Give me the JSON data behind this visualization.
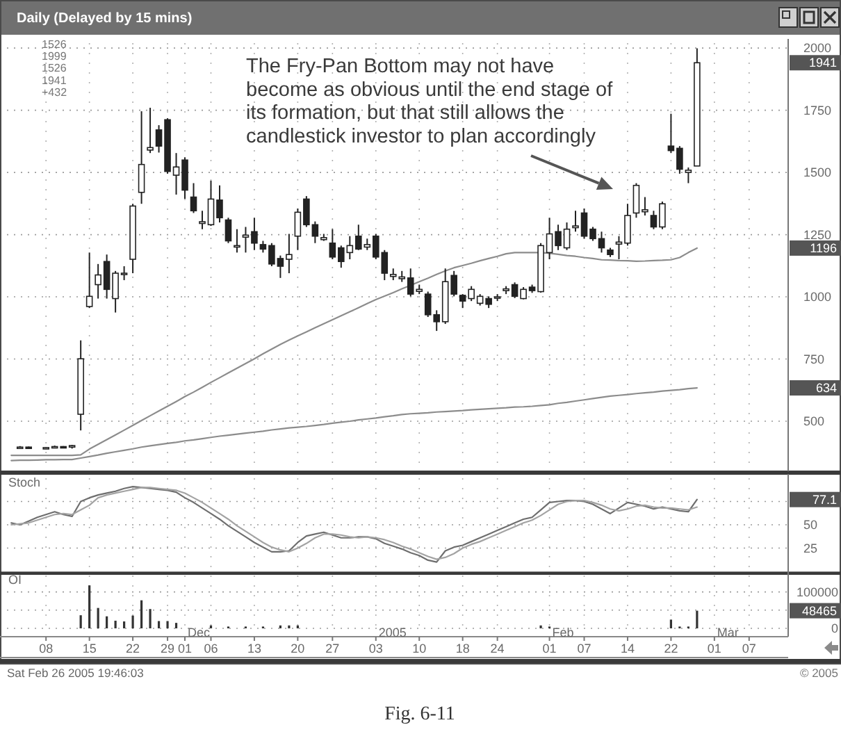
{
  "chart_data": [
    {
      "type": "candlestick",
      "title": "Daily (Delayed by 15 mins)",
      "categories": [
        null,
        null,
        null,
        null,
        "08",
        null,
        null,
        null,
        null,
        "15",
        null,
        null,
        null,
        null,
        "22",
        null,
        null,
        null,
        "29",
        null,
        "01",
        null,
        null,
        "06",
        null,
        null,
        null,
        null,
        "13",
        null,
        null,
        null,
        null,
        "20",
        null,
        null,
        null,
        "27",
        null,
        null,
        null,
        null,
        "03",
        null,
        null,
        null,
        null,
        "10",
        null,
        null,
        null,
        null,
        "18",
        null,
        null,
        null,
        "24",
        null,
        null,
        null,
        null,
        null,
        "01",
        null,
        null,
        null,
        "07",
        null,
        null,
        null,
        null,
        "14",
        null,
        null,
        null,
        null,
        "22",
        null,
        null,
        null,
        null,
        "01",
        null,
        null,
        null,
        "07",
        null,
        null,
        null,
        null
      ],
      "ohlc": [
        null,
        [
          392,
          400,
          390,
          396
        ],
        [
          396,
          398,
          390,
          392
        ],
        null,
        [
          392,
          396,
          388,
          394
        ],
        [
          394,
          402,
          392,
          398
        ],
        [
          398,
          400,
          392,
          396
        ],
        [
          396,
          405,
          390,
          402
        ],
        [
          528,
          825,
          463,
          751
        ],
        [
          961,
          1178,
          955,
          1002
        ],
        [
          1049,
          1132,
          993,
          1088
        ],
        [
          1142,
          1170,
          993,
          1030
        ],
        [
          993,
          1104,
          937,
          1095
        ],
        [
          1090,
          1123,
          1067,
          1095
        ],
        [
          1151,
          1374,
          1095,
          1365
        ],
        [
          1420,
          1746,
          1374,
          1532
        ],
        [
          1590,
          1760,
          1578,
          1600
        ],
        [
          1671,
          1690,
          1580,
          1606
        ],
        [
          1712,
          1718,
          1495,
          1504
        ],
        [
          1489,
          1578,
          1411,
          1522
        ],
        [
          1550,
          1561,
          1394,
          1429
        ],
        [
          1401,
          1457,
          1337,
          1346
        ],
        [
          1295,
          1346,
          1272,
          1302
        ],
        [
          1290,
          1467,
          1285,
          1393
        ],
        [
          1389,
          1448,
          1299,
          1318
        ],
        [
          1309,
          1318,
          1216,
          1225
        ],
        [
          1200,
          1272,
          1178,
          1206
        ],
        [
          1240,
          1281,
          1178,
          1248
        ],
        [
          1262,
          1318,
          1188,
          1216
        ],
        [
          1210,
          1225,
          1178,
          1192
        ],
        [
          1206,
          1216,
          1123,
          1132
        ],
        [
          1154,
          1166,
          1076,
          1123
        ],
        [
          1151,
          1253,
          1095,
          1170
        ],
        [
          1244,
          1355,
          1188,
          1340
        ],
        [
          1393,
          1405,
          1281,
          1290
        ],
        [
          1290,
          1303,
          1216,
          1244
        ],
        [
          1230,
          1253,
          1225,
          1238
        ],
        [
          1216,
          1272,
          1151,
          1160
        ],
        [
          1197,
          1206,
          1117,
          1142
        ],
        [
          1178,
          1244,
          1151,
          1206
        ],
        [
          1244,
          1290,
          1188,
          1192
        ],
        [
          1200,
          1234,
          1188,
          1210
        ],
        [
          1244,
          1253,
          1151,
          1160
        ],
        [
          1178,
          1188,
          1067,
          1095
        ],
        [
          1082,
          1114,
          1067,
          1090
        ],
        [
          1073,
          1104,
          1060,
          1080
        ],
        [
          1076,
          1114,
          1002,
          1011
        ],
        [
          1022,
          1049,
          1011,
          1030
        ],
        [
          1011,
          1021,
          919,
          928
        ],
        [
          928,
          946,
          863,
          900
        ],
        [
          900,
          1114,
          891,
          1061
        ],
        [
          1086,
          1104,
          1002,
          1011
        ],
        [
          1006,
          1011,
          955,
          983
        ],
        [
          993,
          1043,
          983,
          1030
        ],
        [
          974,
          1011,
          965,
          1002
        ],
        [
          993,
          1002,
          955,
          970
        ],
        [
          995,
          1011,
          983,
          1000
        ],
        [
          1025,
          1043,
          1011,
          1032
        ],
        [
          1049,
          1058,
          995,
          1002
        ],
        [
          993,
          1039,
          990,
          1030
        ],
        [
          1039,
          1049,
          1016,
          1025
        ],
        [
          1021,
          1216,
          1017,
          1206
        ],
        [
          1178,
          1318,
          1151,
          1253
        ],
        [
          1262,
          1290,
          1188,
          1206
        ],
        [
          1197,
          1299,
          1188,
          1272
        ],
        [
          1278,
          1346,
          1262,
          1285
        ],
        [
          1337,
          1355,
          1234,
          1244
        ],
        [
          1272,
          1281,
          1225,
          1234
        ],
        [
          1234,
          1262,
          1178,
          1197
        ],
        [
          1188,
          1197,
          1160,
          1170
        ],
        [
          1212,
          1244,
          1151,
          1220
        ],
        [
          1216,
          1374,
          1206,
          1327
        ],
        [
          1337,
          1457,
          1318,
          1448
        ],
        [
          1342,
          1401,
          1327,
          1350
        ],
        [
          1327,
          1346,
          1272,
          1281
        ],
        [
          1281,
          1383,
          1272,
          1374
        ],
        [
          1606,
          1736,
          1578,
          1588
        ],
        [
          1597,
          1606,
          1495,
          1513
        ],
        [
          1500,
          1520,
          1457,
          1509
        ],
        [
          1526,
          1999,
          1526,
          1941
        ],
        null,
        null,
        null,
        null,
        null,
        null,
        null,
        null,
        null,
        null
      ],
      "series": [
        {
          "type": "line",
          "color": "#8c8c8c",
          "values": [
            363,
            363,
            363,
            363,
            363,
            363,
            363,
            363,
            365,
            388,
            407,
            426,
            445,
            464,
            483,
            503,
            522,
            541,
            560,
            579,
            599,
            617,
            636,
            656,
            675,
            694,
            713,
            732,
            751,
            771,
            790,
            809,
            826,
            843,
            859,
            876,
            892,
            908,
            924,
            940,
            956,
            973,
            989,
            1003,
            1017,
            1032,
            1046,
            1061,
            1075,
            1090,
            1104,
            1117,
            1126,
            1135,
            1145,
            1154,
            1163,
            1173,
            1178,
            1178,
            1178,
            1178,
            1175,
            1171,
            1166,
            1163,
            1158,
            1154,
            1149,
            1148,
            1146,
            1145,
            1143,
            1144,
            1146,
            1147,
            1149,
            1158,
            1178,
            1196,
            null,
            null,
            null,
            null,
            null,
            null,
            null,
            null,
            null,
            null
          ]
        },
        {
          "type": "line",
          "color": "#8c8c8c",
          "values": [
            342,
            343,
            343,
            344,
            345,
            345,
            346,
            346,
            352,
            358,
            364,
            371,
            377,
            383,
            389,
            396,
            401,
            406,
            411,
            415,
            421,
            425,
            430,
            435,
            440,
            444,
            448,
            452,
            456,
            460,
            465,
            469,
            473,
            476,
            479,
            483,
            487,
            492,
            496,
            500,
            505,
            509,
            513,
            518,
            522,
            527,
            530,
            532,
            534,
            537,
            539,
            541,
            543,
            546,
            548,
            550,
            552,
            554,
            557,
            558,
            560,
            563,
            566,
            572,
            576,
            581,
            586,
            591,
            596,
            601,
            604,
            607,
            611,
            614,
            617,
            621,
            624,
            627,
            631,
            634,
            null,
            null,
            null,
            null,
            null,
            null,
            null,
            null,
            null,
            null
          ]
        }
      ],
      "ylim": [
        310,
        2020
      ],
      "yticks": [
        500,
        750,
        1000,
        1250,
        1500,
        1750,
        2000
      ],
      "grid": true,
      "tick_labels": "y",
      "annotations": [
        "The Fry-Pan Bottom may not have",
        "become as obvious until the end stage of",
        "its formation, but that still allows the",
        "candlestick investor to plan accordingly",
        "1526",
        "1999",
        "1526",
        "1941",
        "+432",
        "1941",
        "1196",
        "634"
      ]
    },
    {
      "type": "line",
      "title": "Stoch",
      "categories": [
        null,
        null,
        null,
        null,
        "08",
        null,
        null,
        null,
        null,
        "15",
        null,
        null,
        null,
        null,
        "22",
        null,
        null,
        null,
        "29",
        null,
        "01",
        null,
        null,
        "06",
        null,
        null,
        null,
        null,
        "13",
        null,
        null,
        null,
        null,
        "20",
        null,
        null,
        null,
        "27",
        null,
        null,
        null,
        null,
        "03",
        null,
        null,
        null,
        null,
        "10",
        null,
        null,
        null,
        null,
        "18",
        null,
        null,
        null,
        "24",
        null,
        null,
        null,
        null,
        null,
        "01",
        null,
        null,
        null,
        "07",
        null,
        null,
        null,
        null,
        "14",
        null,
        null,
        null,
        null,
        "22",
        null,
        null,
        null,
        null,
        "01",
        null,
        null,
        null,
        "07",
        null,
        null,
        null,
        null
      ],
      "series": [
        {
          "color": "#6e6e6e",
          "values": [
            52,
            50,
            54,
            58,
            61,
            64,
            61,
            59,
            75,
            79,
            82,
            84,
            86,
            89,
            91,
            90,
            89,
            88,
            87,
            85,
            79,
            74,
            68,
            62,
            56,
            49,
            43,
            37,
            31,
            26,
            21,
            21,
            22,
            31,
            38,
            40,
            42,
            39,
            36,
            36,
            37,
            37,
            35,
            30,
            27,
            24,
            20,
            17,
            12,
            10,
            22,
            26,
            28,
            32,
            36,
            40,
            44,
            48,
            52,
            56,
            58,
            66,
            74,
            75,
            76,
            76,
            75,
            72,
            67,
            62,
            68,
            74,
            72,
            70,
            67,
            69,
            67,
            65,
            64,
            77.1,
            null,
            null,
            null,
            null,
            null,
            null,
            null,
            null,
            null,
            null
          ]
        },
        {
          "color": "#a3a3a3",
          "values": [
            50,
            51,
            52,
            55,
            58,
            61,
            62,
            61,
            66,
            71,
            79,
            82,
            84,
            86,
            88,
            90,
            90,
            89,
            88,
            87,
            84,
            79,
            74,
            68,
            62,
            56,
            49,
            43,
            37,
            31,
            26,
            23,
            21,
            25,
            30,
            36,
            40,
            40,
            39,
            37,
            36,
            37,
            36,
            34,
            31,
            27,
            24,
            20,
            16,
            13,
            15,
            19,
            25,
            29,
            32,
            36,
            40,
            44,
            48,
            52,
            55,
            60,
            66,
            72,
            75,
            76,
            76,
            74,
            71,
            67,
            65,
            67,
            70,
            71,
            69,
            68,
            68,
            67,
            66,
            69,
            null,
            null,
            null,
            null,
            null,
            null,
            null,
            null,
            null,
            null
          ]
        }
      ],
      "ylim": [
        0,
        100
      ],
      "yticks": [
        25,
        50,
        {
          "value": 75,
          "label": null
        }
      ],
      "grid": true,
      "tick_labels": "y",
      "annotations": [
        "77.1"
      ]
    },
    {
      "type": "bar",
      "title": "OI",
      "categories": [
        null,
        null,
        null,
        null,
        "08",
        null,
        null,
        null,
        null,
        "15",
        null,
        null,
        null,
        null,
        "22",
        null,
        null,
        null,
        "29",
        null,
        "01",
        null,
        null,
        "06",
        null,
        null,
        null,
        null,
        "13",
        null,
        null,
        null,
        null,
        "20",
        null,
        null,
        null,
        "27",
        null,
        null,
        null,
        null,
        "03",
        null,
        null,
        null,
        null,
        "10",
        null,
        null,
        null,
        null,
        "18",
        null,
        null,
        null,
        "24",
        null,
        null,
        null,
        null,
        null,
        "01",
        null,
        null,
        null,
        "07",
        null,
        null,
        null,
        null,
        "14",
        null,
        null,
        null,
        null,
        "22",
        null,
        null,
        null,
        null,
        "01",
        null,
        null,
        null,
        "07",
        null,
        null,
        null,
        null
      ],
      "values": [
        null,
        null,
        null,
        null,
        null,
        null,
        null,
        null,
        36000,
        118000,
        56000,
        33000,
        21000,
        19000,
        35000,
        77000,
        53000,
        20000,
        20000,
        15000,
        null,
        null,
        null,
        8000,
        null,
        5000,
        null,
        5000,
        null,
        5000,
        null,
        8000,
        8000,
        8000,
        null,
        null,
        null,
        null,
        null,
        null,
        null,
        null,
        null,
        null,
        null,
        null,
        null,
        null,
        null,
        null,
        null,
        null,
        null,
        null,
        null,
        null,
        null,
        null,
        null,
        null,
        null,
        8000,
        5000,
        null,
        null,
        null,
        null,
        null,
        null,
        null,
        null,
        null,
        null,
        null,
        null,
        null,
        24000,
        5000,
        5000,
        48465,
        null,
        null,
        null,
        null,
        null,
        null,
        null,
        null,
        null,
        null
      ],
      "color": "#333333",
      "ylim": [
        0,
        145000
      ],
      "yticks": [
        0,
        {
          "value": 50000,
          "label": null
        },
        100000
      ],
      "grid": true,
      "annotations": [
        "48465",
        "Dec",
        "2005",
        "Feb",
        "Mar",
        "Sat Feb 26 2005 19:46:03",
        "© 2005",
        "Fig. 6-11"
      ]
    }
  ]
}
